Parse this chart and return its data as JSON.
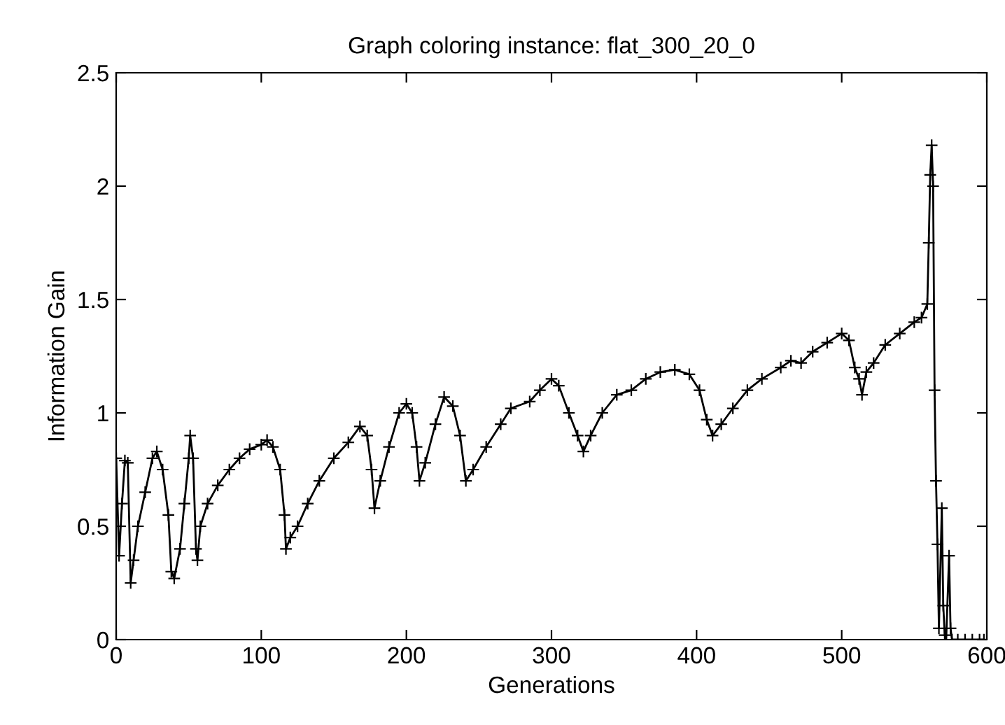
{
  "chart_data": {
    "type": "line",
    "title": "Graph coloring instance: flat_300_20_0",
    "xlabel": "Generations",
    "ylabel": "Information Gain",
    "xlim": [
      0,
      600
    ],
    "ylim": [
      0,
      2.5
    ],
    "xticks": [
      0,
      100,
      200,
      300,
      400,
      500,
      600
    ],
    "yticks": [
      0,
      0.5,
      1,
      1.5,
      2,
      2.5
    ],
    "grid": false,
    "legend": false,
    "marker": "cross",
    "line_style": "solid",
    "series": [
      {
        "color": "#000000",
        "x": [
          0,
          2,
          4,
          6,
          8,
          10,
          12,
          15,
          20,
          25,
          28,
          32,
          36,
          38,
          40,
          44,
          47,
          50,
          51,
          53,
          55,
          56,
          58,
          63,
          70,
          78,
          85,
          92,
          100,
          104,
          108,
          113,
          116,
          117,
          120,
          125,
          132,
          140,
          150,
          160,
          168,
          173,
          176,
          178,
          182,
          188,
          195,
          200,
          204,
          207,
          209,
          213,
          220,
          226,
          232,
          237,
          241,
          246,
          255,
          265,
          272,
          285,
          292,
          300,
          305,
          312,
          318,
          322,
          327,
          335,
          345,
          355,
          365,
          375,
          385,
          395,
          402,
          407,
          411,
          417,
          425,
          435,
          445,
          458,
          465,
          472,
          480,
          490,
          500,
          505,
          509,
          512,
          514,
          517,
          522,
          530,
          540,
          550,
          555,
          559,
          560,
          561,
          562,
          563,
          564,
          565,
          566,
          567,
          569,
          570,
          571,
          572,
          574,
          575,
          576,
          580,
          585,
          590,
          595,
          598
        ],
        "values": [
          0.8,
          0.37,
          0.6,
          0.79,
          0.78,
          0.25,
          0.35,
          0.5,
          0.65,
          0.8,
          0.83,
          0.75,
          0.55,
          0.3,
          0.27,
          0.4,
          0.6,
          0.8,
          0.9,
          0.8,
          0.4,
          0.35,
          0.5,
          0.6,
          0.68,
          0.75,
          0.8,
          0.84,
          0.86,
          0.88,
          0.85,
          0.75,
          0.55,
          0.4,
          0.45,
          0.5,
          0.6,
          0.7,
          0.8,
          0.87,
          0.94,
          0.9,
          0.75,
          0.58,
          0.7,
          0.85,
          1.0,
          1.04,
          1.0,
          0.85,
          0.7,
          0.78,
          0.95,
          1.07,
          1.03,
          0.9,
          0.7,
          0.75,
          0.85,
          0.95,
          1.02,
          1.05,
          1.1,
          1.15,
          1.12,
          1.0,
          0.9,
          0.83,
          0.9,
          1.0,
          1.08,
          1.1,
          1.15,
          1.18,
          1.19,
          1.17,
          1.1,
          0.97,
          0.9,
          0.95,
          1.02,
          1.1,
          1.15,
          1.2,
          1.23,
          1.22,
          1.27,
          1.31,
          1.35,
          1.32,
          1.2,
          1.15,
          1.08,
          1.18,
          1.22,
          1.3,
          1.35,
          1.4,
          1.42,
          1.48,
          1.75,
          2.05,
          2.18,
          2.0,
          1.1,
          0.7,
          0.42,
          0.05,
          0.58,
          0.15,
          0.02,
          0,
          0.37,
          0.05,
          0,
          0,
          0,
          0,
          0,
          0
        ]
      }
    ]
  }
}
